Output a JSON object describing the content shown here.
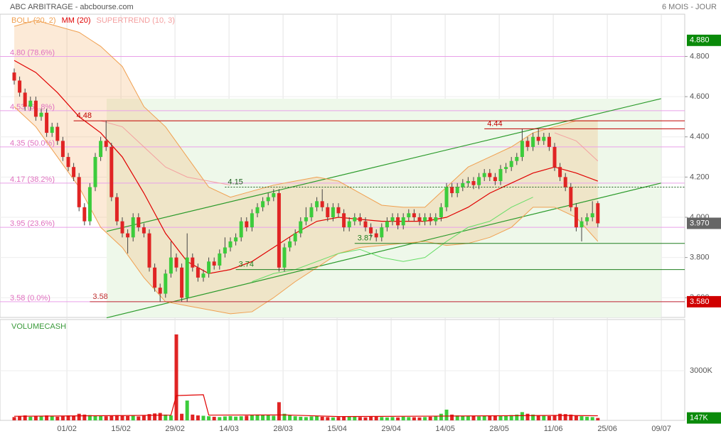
{
  "chart_data": {
    "type": "candlestick",
    "title": "ABC ARBITRAGE - abcbourse.com",
    "period": "6 MOIS - JOUR",
    "xlim": [
      -2.632,
      124.08
    ],
    "ylim": [
      3.502,
      5.01
    ],
    "yticks": [
      {
        "value": 3.6,
        "label": "3.600"
      },
      {
        "value": 3.8,
        "label": "3.800"
      },
      {
        "value": 4.0,
        "label": "4.000"
      },
      {
        "value": 4.2,
        "label": "4.200"
      },
      {
        "value": 4.4,
        "label": "4.400"
      },
      {
        "value": 4.6,
        "label": "4.600"
      },
      {
        "value": 4.8,
        "label": "4.800"
      }
    ],
    "xticks": [
      {
        "value": 9.75,
        "label": "01/02"
      },
      {
        "value": 19.75,
        "label": "15/02"
      },
      {
        "value": 29.75,
        "label": "29/02"
      },
      {
        "value": 39.75,
        "label": "14/03"
      },
      {
        "value": 49.75,
        "label": "28/03"
      },
      {
        "value": 59.75,
        "label": "15/04"
      },
      {
        "value": 69.75,
        "label": "29/04"
      },
      {
        "value": 79.75,
        "label": "14/05"
      },
      {
        "value": 89.75,
        "label": "28/05"
      },
      {
        "value": 99.75,
        "label": "11/06"
      },
      {
        "value": 109.75,
        "label": "25/06"
      },
      {
        "value": 119.75,
        "label": "09/07"
      }
    ],
    "up_color": "#3ccc3c",
    "down_color": "#e02424",
    "candles": [
      [
        4.72,
        4.74,
        4.66,
        4.68
      ],
      [
        4.68,
        4.7,
        4.6,
        4.62
      ],
      [
        4.62,
        4.64,
        4.53,
        4.55
      ],
      [
        4.55,
        4.6,
        4.53,
        4.58
      ],
      [
        4.58,
        4.6,
        4.48,
        4.5
      ],
      [
        4.5,
        4.54,
        4.48,
        4.52
      ],
      [
        4.52,
        4.54,
        4.4,
        4.42
      ],
      [
        4.42,
        4.47,
        4.4,
        4.45
      ],
      [
        4.45,
        4.47,
        4.36,
        4.38
      ],
      [
        4.38,
        4.4,
        4.28,
        4.3
      ],
      [
        4.3,
        4.32,
        4.23,
        4.25
      ],
      [
        4.25,
        4.27,
        4.18,
        4.2
      ],
      [
        4.2,
        4.22,
        4.03,
        4.05
      ],
      [
        4.05,
        4.07,
        3.96,
        3.98
      ],
      [
        3.98,
        4.17,
        3.96,
        4.15
      ],
      [
        4.15,
        4.32,
        4.13,
        4.3
      ],
      [
        4.3,
        4.4,
        4.28,
        4.38
      ],
      [
        4.38,
        4.48,
        4.33,
        4.35
      ],
      [
        4.35,
        4.37,
        4.08,
        4.1
      ],
      [
        4.1,
        4.12,
        3.96,
        3.98
      ],
      [
        3.98,
        4.0,
        3.9,
        3.92
      ],
      [
        3.92,
        3.94,
        3.82,
        3.9
      ],
      [
        3.9,
        4.02,
        3.88,
        4.0
      ],
      [
        4.0,
        4.02,
        3.93,
        3.95
      ],
      [
        3.95,
        3.97,
        3.9,
        3.92
      ],
      [
        3.92,
        3.94,
        3.73,
        3.75
      ],
      [
        3.75,
        3.77,
        3.63,
        3.65
      ],
      [
        3.65,
        3.67,
        3.58,
        3.62
      ],
      [
        3.62,
        3.74,
        3.6,
        3.72
      ],
      [
        3.72,
        3.88,
        3.7,
        3.8
      ],
      [
        3.8,
        3.82,
        3.73,
        3.75
      ],
      [
        3.75,
        3.77,
        3.58,
        3.6
      ],
      [
        3.6,
        3.92,
        3.58,
        3.8
      ],
      [
        3.8,
        3.82,
        3.73,
        3.75
      ],
      [
        3.75,
        3.77,
        3.68,
        3.7
      ],
      [
        3.7,
        3.74,
        3.68,
        3.72
      ],
      [
        3.72,
        3.8,
        3.7,
        3.78
      ],
      [
        3.78,
        3.8,
        3.74,
        3.76
      ],
      [
        3.76,
        3.84,
        3.74,
        3.82
      ],
      [
        3.82,
        3.9,
        3.8,
        3.85
      ],
      [
        3.85,
        3.9,
        3.83,
        3.88
      ],
      [
        3.88,
        3.92,
        3.86,
        3.9
      ],
      [
        3.9,
        4.0,
        3.88,
        3.98
      ],
      [
        3.98,
        4.0,
        3.93,
        3.95
      ],
      [
        3.95,
        4.04,
        3.93,
        4.02
      ],
      [
        4.02,
        4.07,
        4.0,
        4.05
      ],
      [
        4.05,
        4.1,
        4.03,
        4.08
      ],
      [
        4.08,
        4.12,
        4.06,
        4.1
      ],
      [
        4.1,
        4.14,
        4.08,
        4.12
      ],
      [
        4.12,
        4.14,
        3.73,
        3.75
      ],
      [
        3.75,
        3.87,
        3.73,
        3.85
      ],
      [
        3.85,
        3.9,
        3.83,
        3.88
      ],
      [
        3.88,
        3.94,
        3.86,
        3.92
      ],
      [
        3.92,
        4.0,
        3.9,
        3.98
      ],
      [
        3.98,
        4.05,
        3.96,
        4.0
      ],
      [
        4.0,
        4.07,
        3.98,
        4.05
      ],
      [
        4.05,
        4.1,
        4.03,
        4.08
      ],
      [
        4.08,
        4.14,
        4.03,
        4.05
      ],
      [
        4.05,
        4.07,
        3.98,
        4.0
      ],
      [
        4.0,
        4.07,
        3.98,
        4.05
      ],
      [
        4.05,
        4.07,
        4.0,
        4.02
      ],
      [
        4.02,
        4.04,
        3.93,
        3.95
      ],
      [
        3.95,
        4.0,
        3.93,
        3.98
      ],
      [
        3.98,
        4.02,
        3.96,
        4.0
      ],
      [
        4.0,
        4.02,
        3.96,
        3.98
      ],
      [
        3.98,
        4.0,
        3.93,
        3.95
      ],
      [
        3.95,
        3.97,
        3.9,
        3.92
      ],
      [
        3.92,
        3.94,
        3.88,
        3.9
      ],
      [
        3.9,
        3.97,
        3.88,
        3.95
      ],
      [
        3.95,
        4.0,
        3.93,
        3.98
      ],
      [
        3.98,
        4.02,
        3.96,
        4.0
      ],
      [
        4.0,
        4.02,
        3.94,
        3.96
      ],
      [
        3.96,
        4.02,
        3.94,
        4.0
      ],
      [
        4.0,
        4.04,
        3.98,
        4.02
      ],
      [
        4.02,
        4.04,
        3.98,
        4.0
      ],
      [
        4.0,
        4.02,
        3.96,
        3.98
      ],
      [
        3.98,
        4.02,
        3.96,
        4.0
      ],
      [
        4.0,
        4.02,
        3.96,
        3.98
      ],
      [
        3.98,
        4.02,
        3.96,
        4.0
      ],
      [
        4.0,
        4.07,
        3.98,
        4.05
      ],
      [
        4.05,
        4.17,
        4.03,
        4.15
      ],
      [
        4.15,
        4.17,
        4.1,
        4.12
      ],
      [
        4.12,
        4.17,
        4.1,
        4.15
      ],
      [
        4.15,
        4.19,
        4.13,
        4.17
      ],
      [
        4.17,
        4.2,
        4.15,
        4.18
      ],
      [
        4.18,
        4.2,
        4.14,
        4.16
      ],
      [
        4.16,
        4.22,
        4.14,
        4.2
      ],
      [
        4.2,
        4.24,
        4.18,
        4.22
      ],
      [
        4.22,
        4.24,
        4.18,
        4.2
      ],
      [
        4.2,
        4.22,
        4.16,
        4.18
      ],
      [
        4.18,
        4.26,
        4.16,
        4.24
      ],
      [
        4.24,
        4.27,
        4.22,
        4.25
      ],
      [
        4.25,
        4.3,
        4.23,
        4.28
      ],
      [
        4.28,
        4.32,
        4.26,
        4.3
      ],
      [
        4.3,
        4.44,
        4.28,
        4.38
      ],
      [
        4.38,
        4.4,
        4.33,
        4.35
      ],
      [
        4.35,
        4.42,
        4.33,
        4.4
      ],
      [
        4.4,
        4.44,
        4.36,
        4.38
      ],
      [
        4.38,
        4.42,
        4.36,
        4.4
      ],
      [
        4.4,
        4.42,
        4.33,
        4.35
      ],
      [
        4.35,
        4.37,
        4.23,
        4.25
      ],
      [
        4.25,
        4.27,
        4.18,
        4.2
      ],
      [
        4.2,
        4.22,
        4.13,
        4.15
      ],
      [
        4.15,
        4.17,
        4.03,
        4.05
      ],
      [
        4.05,
        4.07,
        3.93,
        3.95
      ],
      [
        3.95,
        4.0,
        3.88,
        3.98
      ],
      [
        3.98,
        4.02,
        3.96,
        4.0
      ],
      [
        4.0,
        4.08,
        3.98,
        4.02
      ],
      [
        4.07,
        4.08,
        3.95,
        3.97
      ]
    ],
    "series_x": [
      0,
      4,
      8,
      12,
      16,
      20,
      24,
      28,
      32,
      36,
      40,
      44,
      48,
      52,
      56,
      60,
      64,
      68,
      72,
      76,
      80,
      84,
      88,
      92,
      96,
      100,
      104,
      108
    ],
    "series": [
      {
        "name": "BOLL (20, 2)",
        "color": "#f0a050",
        "upper": [
          4.95,
          4.98,
          4.95,
          4.92,
          4.85,
          4.75,
          4.55,
          4.45,
          4.3,
          4.15,
          4.1,
          4.13,
          4.16,
          4.18,
          4.2,
          4.18,
          4.12,
          4.06,
          4.05,
          4.05,
          4.15,
          4.25,
          4.3,
          4.35,
          4.42,
          4.45,
          4.48,
          4.48
        ],
        "lower": [
          4.55,
          4.45,
          4.3,
          4.15,
          3.95,
          3.85,
          3.7,
          3.58,
          3.56,
          3.54,
          3.52,
          3.53,
          3.6,
          3.68,
          3.75,
          3.82,
          3.85,
          3.86,
          3.87,
          3.88,
          3.86,
          3.87,
          3.9,
          3.95,
          4.05,
          4.05,
          4.0,
          3.88
        ]
      },
      {
        "name": "MM (20)",
        "color": "#e00000",
        "values": [
          4.78,
          4.72,
          4.62,
          4.5,
          4.42,
          4.3,
          4.12,
          3.92,
          3.78,
          3.72,
          3.74,
          3.78,
          3.85,
          3.92,
          3.98,
          4.0,
          3.99,
          3.98,
          3.98,
          3.98,
          4.0,
          4.05,
          4.12,
          4.17,
          4.22,
          4.25,
          4.22,
          4.18
        ]
      },
      {
        "name": "SUPERTREND (10, 3)",
        "color": "#f4a0a0",
        "color_up": "#66dd66",
        "values_down": [
          null,
          null,
          null,
          null,
          4.48,
          4.45,
          4.35,
          4.25,
          4.2,
          4.18,
          4.16,
          null,
          null,
          null,
          null,
          null,
          null,
          null,
          null,
          null,
          null,
          null,
          null,
          null,
          null,
          4.42,
          4.38,
          4.28
        ],
        "values_up": [
          null,
          null,
          null,
          null,
          null,
          null,
          null,
          null,
          null,
          null,
          null,
          3.68,
          3.72,
          3.74,
          3.78,
          3.82,
          3.84,
          3.8,
          3.78,
          3.8,
          3.88,
          3.95,
          3.98,
          4.05,
          4.1,
          null,
          null,
          null
        ]
      }
    ],
    "fib_color": "#e9a0e9",
    "fib_label_color": "#e070c0",
    "fib_levels": [
      {
        "value": 4.8,
        "label": "4.80 (78.6%)"
      },
      {
        "value": 4.53,
        "label": "4.53 (61.8%)"
      },
      {
        "value": 4.35,
        "label": "4.35 (50.0%)"
      },
      {
        "value": 4.17,
        "label": "4.17 (38.2%)"
      },
      {
        "value": 3.95,
        "label": "3.95 (23.6%)"
      },
      {
        "value": 3.58,
        "label": "3.58 (0.0%)"
      }
    ],
    "levels": [
      {
        "value": 4.48,
        "label": "4.48",
        "color": "#c00000",
        "x_start": 11,
        "dash": false
      },
      {
        "value": 4.44,
        "label": "4.44",
        "color": "#c00000",
        "x_start": 87,
        "dash": false
      },
      {
        "value": 4.15,
        "label": "4.15",
        "color": "#1f5f1f",
        "x_start": 39,
        "dash": true
      },
      {
        "value": 3.87,
        "label": "3.87",
        "color": "#1f7f1f",
        "x_start": 63,
        "dash": false
      },
      {
        "value": 3.74,
        "label": "3.74",
        "color": "#1f7f1f",
        "x_start": 41,
        "dash": false
      },
      {
        "value": 3.58,
        "label": "3.58",
        "color": "#c03030",
        "x_start": 14,
        "dash": false
      }
    ],
    "channel": {
      "color": "#2a9a2a",
      "upper": [
        [
          17.1,
          3.93
        ],
        [
          119.7,
          4.59
        ]
      ],
      "lower": [
        [
          17.1,
          3.5
        ],
        [
          119.7,
          4.17
        ]
      ]
    },
    "price_boxes": [
      {
        "value": 4.88,
        "label": "4.880",
        "color": "#0a8a0a"
      },
      {
        "value": 3.97,
        "label": "3.970",
        "color": "#666666"
      },
      {
        "value": 3.58,
        "label": "3.580",
        "color": "#d00000"
      }
    ],
    "volume_title": "VOLUMECASH",
    "volume_ylim": [
      0,
      6100
    ],
    "volume_yticks": [
      {
        "value": 3000,
        "label": "3000K"
      }
    ],
    "volume": [
      200,
      250,
      300,
      220,
      280,
      240,
      300,
      260,
      220,
      250,
      300,
      280,
      400,
      350,
      320,
      300,
      280,
      250,
      300,
      320,
      280,
      260,
      300,
      240,
      320,
      380,
      420,
      450,
      350,
      300,
      5200,
      400,
      1200,
      350,
      300,
      280,
      250,
      220,
      200,
      240,
      260,
      230,
      250,
      280,
      300,
      350,
      320,
      300,
      280,
      1100,
      400,
      300,
      250,
      220,
      200,
      240,
      260,
      220,
      200,
      180,
      200,
      220,
      250,
      240,
      200,
      180,
      220,
      250,
      200,
      180,
      200,
      180,
      220,
      200,
      190,
      180,
      200,
      220,
      250,
      400,
      650,
      350,
      300,
      280,
      250,
      260,
      240,
      300,
      280,
      260,
      300,
      280,
      320,
      350,
      500,
      400,
      350,
      300,
      280,
      260,
      320,
      400,
      380,
      350,
      300,
      250,
      220,
      200,
      147
    ],
    "volume_box": {
      "value": 147,
      "label": "147K",
      "color": "#0a8a0a"
    },
    "volume_ma": {
      "color": "#e00000",
      "x": [
        0,
        10,
        20,
        29,
        30,
        35,
        36,
        50,
        60,
        80,
        100,
        108
      ],
      "values": [
        250,
        270,
        290,
        320,
        1500,
        1550,
        320,
        330,
        230,
        260,
        300,
        280
      ]
    }
  }
}
